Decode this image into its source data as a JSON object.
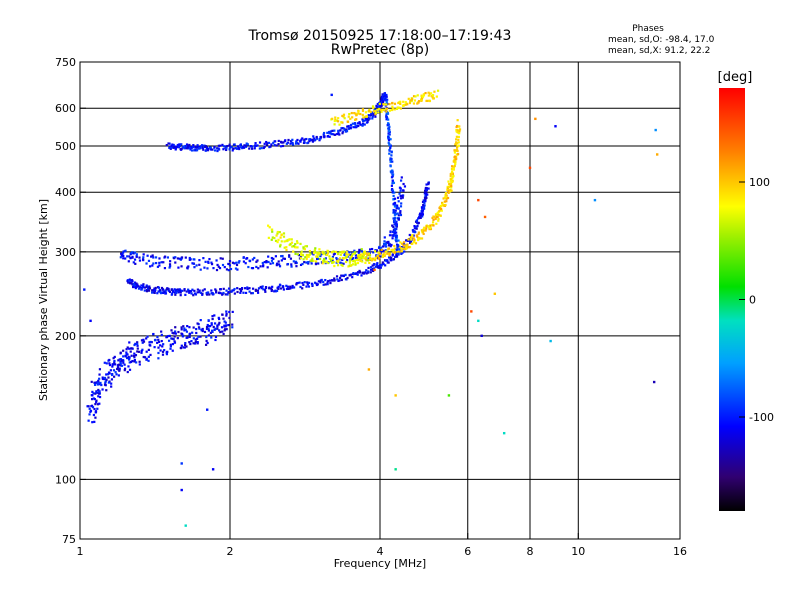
{
  "chart_data": {
    "type": "scatter",
    "title": "Tromsø 20150925 17:18:00–17:19:43",
    "subtitle": "RwPretec (8p)",
    "xlabel": "Frequency [MHz]",
    "ylabel": "Stationary phase Virtual Height [km]",
    "x_scale": "log",
    "y_scale": "log",
    "xlim": [
      1,
      16
    ],
    "ylim": [
      75,
      750
    ],
    "x_ticks": [
      1,
      2,
      4,
      6,
      8,
      10,
      16
    ],
    "x_tick_labels": [
      "1",
      "2",
      "4",
      "6",
      "8",
      "10",
      "16"
    ],
    "y_ticks": [
      75,
      100,
      200,
      300,
      400,
      500,
      600,
      750
    ],
    "y_tick_labels": [
      "75",
      "100",
      "200",
      "300",
      "400",
      "500",
      "600",
      "750"
    ],
    "grid": true,
    "phase_info": {
      "heading": "Phases",
      "line_o": "mean, sd,O:  -98.4, 17.0",
      "line_x": "mean, sd,X:  91.2, 22.2"
    },
    "colorbar": {
      "label": "[deg]",
      "range": [
        -180,
        180
      ],
      "ticks": [
        -100,
        0,
        100
      ],
      "tick_labels": [
        "-100",
        "0",
        "100"
      ],
      "colormap": "rainbow"
    },
    "traces": [
      {
        "x": [
          1.05,
          1.07,
          1.1,
          1.15,
          1.2,
          1.25,
          1.3,
          1.4,
          1.5,
          1.6,
          1.7,
          1.8,
          1.9,
          2.0
        ],
        "y": [
          135,
          150,
          160,
          170,
          175,
          180,
          185,
          190,
          195,
          200,
          200,
          205,
          210,
          215
        ],
        "phase": -110,
        "spread": 0.08
      },
      {
        "x": [
          1.25,
          1.3,
          1.4,
          1.5,
          1.6,
          1.8,
          2.0,
          2.3,
          2.6,
          3.0,
          3.4,
          3.8,
          4.1,
          4.4,
          4.6,
          4.8,
          4.9,
          5.0
        ],
        "y": [
          260,
          255,
          250,
          248,
          247,
          247,
          248,
          250,
          253,
          258,
          265,
          275,
          285,
          300,
          320,
          350,
          380,
          420
        ],
        "phase": -110,
        "spread": 0.02
      },
      {
        "x": [
          1.2,
          1.3,
          1.5,
          1.7,
          2.0,
          2.3,
          2.6,
          3.0,
          3.4,
          3.7,
          4.0,
          4.2,
          4.35,
          4.45
        ],
        "y": [
          295,
          290,
          285,
          283,
          283,
          285,
          287,
          290,
          292,
          295,
          300,
          320,
          360,
          420
        ],
        "phase": -105,
        "spread": 0.04
      },
      {
        "x": [
          3.6,
          3.9,
          4.2,
          4.5,
          4.8,
          5.1,
          5.3,
          5.5,
          5.6,
          5.7,
          5.75
        ],
        "y": [
          290,
          295,
          300,
          310,
          325,
          345,
          370,
          400,
          440,
          490,
          560
        ],
        "phase": 95,
        "spread": 0.03
      },
      {
        "x": [
          2.4,
          2.6,
          2.8,
          3.0,
          3.2,
          3.4,
          3.6,
          3.8
        ],
        "y": [
          330,
          315,
          300,
          295,
          290,
          290,
          292,
          295
        ],
        "phase": 70,
        "spread": 0.05
      },
      {
        "x": [
          1.5,
          1.6,
          1.7,
          1.8,
          2.0,
          2.2,
          2.5,
          2.8,
          3.1,
          3.4,
          3.7,
          3.9,
          4.0,
          4.05,
          4.1
        ],
        "y": [
          500,
          498,
          496,
          495,
          496,
          500,
          505,
          512,
          525,
          540,
          560,
          585,
          610,
          630,
          640
        ],
        "phase": -105,
        "spread": 0.02
      },
      {
        "x": [
          4.1,
          4.15,
          4.2,
          4.25,
          4.3,
          4.35
        ],
        "y": [
          640,
          560,
          480,
          400,
          340,
          300
        ],
        "phase": -90,
        "spread": 0.02
      },
      {
        "x": [
          3.2,
          3.6,
          4.0,
          4.4,
          4.8,
          5.2
        ],
        "y": [
          560,
          580,
          600,
          610,
          630,
          640
        ],
        "phase": 90,
        "spread": 0.03
      }
    ],
    "scatter_points": [
      {
        "x": 1.02,
        "y": 250,
        "phase": -100
      },
      {
        "x": 1.05,
        "y": 215,
        "phase": -110
      },
      {
        "x": 1.6,
        "y": 95,
        "phase": -110
      },
      {
        "x": 1.6,
        "y": 108,
        "phase": -90
      },
      {
        "x": 1.8,
        "y": 140,
        "phase": -100
      },
      {
        "x": 1.85,
        "y": 105,
        "phase": -110
      },
      {
        "x": 1.63,
        "y": 80,
        "phase": -20
      },
      {
        "x": 3.2,
        "y": 640,
        "phase": -100
      },
      {
        "x": 3.8,
        "y": 170,
        "phase": 110
      },
      {
        "x": 3.9,
        "y": 275,
        "phase": 140
      },
      {
        "x": 4.3,
        "y": 150,
        "phase": 100
      },
      {
        "x": 4.3,
        "y": 105,
        "phase": -10
      },
      {
        "x": 5.5,
        "y": 150,
        "phase": 30
      },
      {
        "x": 6.1,
        "y": 225,
        "phase": 150
      },
      {
        "x": 6.3,
        "y": 385,
        "phase": 150
      },
      {
        "x": 6.4,
        "y": 200,
        "phase": -120
      },
      {
        "x": 6.5,
        "y": 355,
        "phase": 140
      },
      {
        "x": 6.3,
        "y": 215,
        "phase": -20
      },
      {
        "x": 6.8,
        "y": 245,
        "phase": 100
      },
      {
        "x": 7.1,
        "y": 125,
        "phase": -20
      },
      {
        "x": 8.0,
        "y": 450,
        "phase": 150
      },
      {
        "x": 8.2,
        "y": 570,
        "phase": 120
      },
      {
        "x": 8.8,
        "y": 195,
        "phase": -40
      },
      {
        "x": 9.0,
        "y": 550,
        "phase": -110
      },
      {
        "x": 10.8,
        "y": 385,
        "phase": -60
      },
      {
        "x": 14.2,
        "y": 160,
        "phase": -130
      },
      {
        "x": 14.3,
        "y": 540,
        "phase": -60
      },
      {
        "x": 14.4,
        "y": 480,
        "phase": 110
      }
    ]
  }
}
